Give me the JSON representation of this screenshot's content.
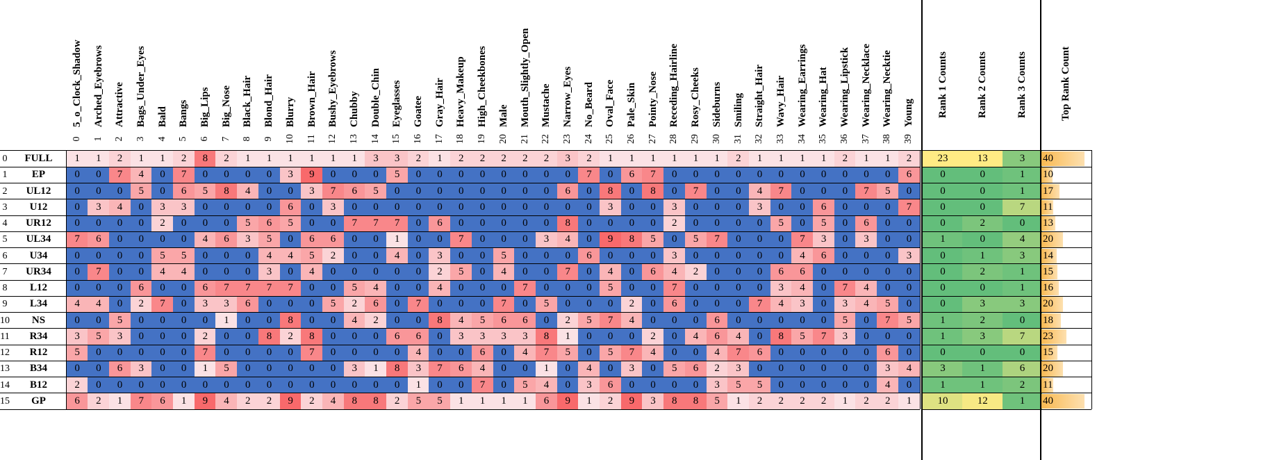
{
  "chart_data": {
    "type": "heatmap",
    "columns": [
      "5_o_Clock_Shadow",
      "Arched_Eyebrows",
      "Attractive",
      "Bags_Under_Eyes",
      "Bald",
      "Bangs",
      "Big_Lips",
      "Big_Nose",
      "Black_Hair",
      "Blond_Hair",
      "Blurry",
      "Brown_Hair",
      "Bushy_Eyebrows",
      "Chubby",
      "Double_Chin",
      "Eyeglasses",
      "Goatee",
      "Gray_Hair",
      "Heavy_Makeup",
      "High_Cheekbones",
      "Male",
      "Mouth_Slightly_Open",
      "Mustache",
      "Narrow_Eyes",
      "No_Beard",
      "Oval_Face",
      "Pale_Skin",
      "Pointy_Nose",
      "Receding_Hairline",
      "Rosy_Cheeks",
      "Sideburns",
      "Smiling",
      "Straight_Hair",
      "Wavy_Hair",
      "Wearing_Earrings",
      "Wearing_Hat",
      "Wearing_Lipstick",
      "Wearing_Necklace",
      "Wearing_Necktie",
      "Young"
    ],
    "column_indices": [
      "0",
      "1",
      "2",
      "3",
      "4",
      "5",
      "6",
      "7",
      "8",
      "9",
      "10",
      "11",
      "12",
      "13",
      "14",
      "15",
      "16",
      "17",
      "18",
      "19",
      "20",
      "21",
      "22",
      "23",
      "24",
      "25",
      "26",
      "27",
      "28",
      "29",
      "30",
      "31",
      "32",
      "33",
      "34",
      "35",
      "36",
      "37",
      "38",
      "39"
    ],
    "rows": [
      "FULL",
      "EP",
      "UL12",
      "U12",
      "UR12",
      "UL34",
      "U34",
      "UR34",
      "L12",
      "L34",
      "NS",
      "R34",
      "R12",
      "B34",
      "B12",
      "GP"
    ],
    "row_indices": [
      "0",
      "1",
      "2",
      "3",
      "4",
      "5",
      "6",
      "7",
      "8",
      "9",
      "10",
      "11",
      "12",
      "13",
      "14",
      "15"
    ],
    "values": [
      [
        1,
        1,
        2,
        1,
        1,
        2,
        8,
        2,
        1,
        1,
        1,
        1,
        1,
        1,
        3,
        3,
        2,
        1,
        2,
        2,
        2,
        2,
        2,
        3,
        2,
        1,
        1,
        1,
        1,
        1,
        1,
        2,
        1,
        1,
        1,
        1,
        2,
        1,
        1,
        2
      ],
      [
        0,
        0,
        7,
        4,
        0,
        7,
        0,
        0,
        0,
        0,
        3,
        9,
        0,
        0,
        0,
        5,
        0,
        0,
        0,
        0,
        0,
        0,
        0,
        0,
        7,
        0,
        6,
        7,
        0,
        0,
        0,
        0,
        0,
        0,
        0,
        0,
        0,
        0,
        0,
        6
      ],
      [
        0,
        0,
        0,
        5,
        0,
        6,
        5,
        8,
        4,
        0,
        0,
        3,
        7,
        6,
        5,
        0,
        0,
        0,
        0,
        0,
        0,
        0,
        0,
        6,
        0,
        8,
        0,
        8,
        0,
        7,
        0,
        0,
        4,
        7,
        0,
        0,
        0,
        7,
        5,
        0
      ],
      [
        0,
        3,
        4,
        0,
        3,
        3,
        0,
        0,
        0,
        0,
        6,
        0,
        3,
        0,
        0,
        0,
        0,
        0,
        0,
        0,
        0,
        0,
        0,
        0,
        0,
        3,
        0,
        0,
        3,
        0,
        0,
        0,
        3,
        0,
        0,
        6,
        0,
        0,
        0,
        7
      ],
      [
        0,
        0,
        0,
        0,
        2,
        0,
        0,
        0,
        5,
        6,
        5,
        0,
        0,
        7,
        7,
        7,
        0,
        6,
        0,
        0,
        0,
        0,
        0,
        8,
        0,
        0,
        0,
        0,
        2,
        0,
        0,
        0,
        0,
        5,
        0,
        5,
        0,
        6,
        0,
        0
      ],
      [
        7,
        6,
        0,
        0,
        0,
        0,
        4,
        6,
        3,
        5,
        0,
        6,
        6,
        0,
        0,
        1,
        0,
        0,
        7,
        0,
        0,
        0,
        3,
        4,
        0,
        9,
        8,
        5,
        0,
        5,
        7,
        0,
        0,
        0,
        7,
        3,
        0,
        3,
        0,
        0
      ],
      [
        0,
        0,
        0,
        0,
        5,
        5,
        0,
        0,
        0,
        4,
        4,
        5,
        2,
        0,
        0,
        4,
        0,
        3,
        0,
        0,
        5,
        0,
        0,
        0,
        6,
        0,
        0,
        0,
        3,
        0,
        0,
        0,
        0,
        0,
        4,
        6,
        0,
        0,
        0,
        3
      ],
      [
        0,
        7,
        0,
        0,
        4,
        4,
        0,
        0,
        0,
        3,
        0,
        4,
        0,
        0,
        0,
        0,
        0,
        2,
        5,
        0,
        4,
        0,
        0,
        7,
        0,
        4,
        0,
        6,
        4,
        2,
        0,
        0,
        0,
        6,
        6,
        0,
        0,
        0,
        0,
        0
      ],
      [
        0,
        0,
        0,
        6,
        0,
        0,
        6,
        7,
        7,
        7,
        7,
        0,
        0,
        5,
        4,
        0,
        0,
        4,
        0,
        0,
        0,
        7,
        0,
        0,
        0,
        5,
        0,
        0,
        7,
        0,
        0,
        0,
        0,
        3,
        4,
        0,
        7,
        4,
        0,
        0
      ],
      [
        4,
        4,
        0,
        2,
        7,
        0,
        3,
        3,
        6,
        0,
        0,
        0,
        5,
        2,
        6,
        0,
        7,
        0,
        0,
        0,
        7,
        0,
        5,
        0,
        0,
        0,
        2,
        0,
        6,
        0,
        0,
        0,
        7,
        4,
        3,
        0,
        3,
        4,
        5,
        0
      ],
      [
        0,
        0,
        5,
        0,
        0,
        0,
        0,
        1,
        0,
        0,
        8,
        0,
        0,
        4,
        2,
        0,
        0,
        8,
        4,
        5,
        6,
        6,
        0,
        2,
        5,
        7,
        4,
        0,
        0,
        0,
        6,
        0,
        0,
        0,
        0,
        0,
        5,
        0,
        7,
        5
      ],
      [
        3,
        5,
        3,
        0,
        0,
        0,
        2,
        0,
        0,
        8,
        2,
        8,
        0,
        0,
        0,
        6,
        6,
        0,
        3,
        3,
        3,
        3,
        8,
        1,
        0,
        0,
        0,
        2,
        0,
        4,
        6,
        4,
        0,
        8,
        5,
        7,
        3,
        0,
        0,
        0
      ],
      [
        5,
        0,
        0,
        0,
        0,
        0,
        7,
        0,
        0,
        0,
        0,
        7,
        0,
        0,
        0,
        0,
        4,
        0,
        0,
        6,
        0,
        4,
        7,
        5,
        0,
        5,
        7,
        4,
        0,
        0,
        4,
        7,
        6,
        0,
        0,
        0,
        0,
        0,
        6,
        0
      ],
      [
        0,
        0,
        6,
        3,
        0,
        0,
        1,
        5,
        0,
        0,
        0,
        0,
        0,
        3,
        1,
        8,
        3,
        7,
        6,
        4,
        0,
        0,
        1,
        0,
        4,
        0,
        3,
        0,
        5,
        6,
        2,
        3,
        0,
        0,
        0,
        0,
        0,
        0,
        3,
        4
      ],
      [
        2,
        0,
        0,
        0,
        0,
        0,
        0,
        0,
        0,
        0,
        0,
        0,
        0,
        0,
        0,
        0,
        1,
        0,
        0,
        7,
        0,
        5,
        4,
        0,
        3,
        6,
        0,
        0,
        0,
        0,
        3,
        5,
        5,
        0,
        0,
        0,
        0,
        0,
        4,
        0
      ],
      [
        6,
        2,
        1,
        7,
        6,
        1,
        9,
        4,
        2,
        2,
        9,
        2,
        4,
        8,
        8,
        2,
        5,
        5,
        1,
        1,
        1,
        1,
        6,
        9,
        1,
        2,
        9,
        3,
        8,
        8,
        5,
        1,
        2,
        2,
        2,
        2,
        1,
        2,
        2,
        1
      ]
    ],
    "rank_headers": [
      "Rank 1 Counts",
      "Rank 2 Counts",
      "Rank 3 Counts"
    ],
    "rank_counts": [
      [
        23,
        13,
        3
      ],
      [
        0,
        0,
        1
      ],
      [
        0,
        0,
        1
      ],
      [
        0,
        0,
        7
      ],
      [
        0,
        2,
        0
      ],
      [
        1,
        0,
        4
      ],
      [
        0,
        1,
        3
      ],
      [
        0,
        2,
        1
      ],
      [
        0,
        0,
        1
      ],
      [
        0,
        3,
        3
      ],
      [
        1,
        2,
        0
      ],
      [
        1,
        3,
        7
      ],
      [
        0,
        0,
        0
      ],
      [
        3,
        1,
        6
      ],
      [
        1,
        1,
        2
      ],
      [
        10,
        12,
        1
      ]
    ],
    "top_rank_header": "Top Rank Count",
    "top_rank_count": [
      40,
      10,
      17,
      11,
      13,
      20,
      14,
      15,
      16,
      20,
      18,
      23,
      15,
      20,
      11,
      40
    ],
    "top_rank_max": 40,
    "colors": {
      "zero": "#4472c4",
      "low": "#fbe2e5",
      "high": "#f8696b",
      "green_low": "#63be7b",
      "green_mid": "#ffeb84",
      "bar": "#f9b951"
    }
  }
}
